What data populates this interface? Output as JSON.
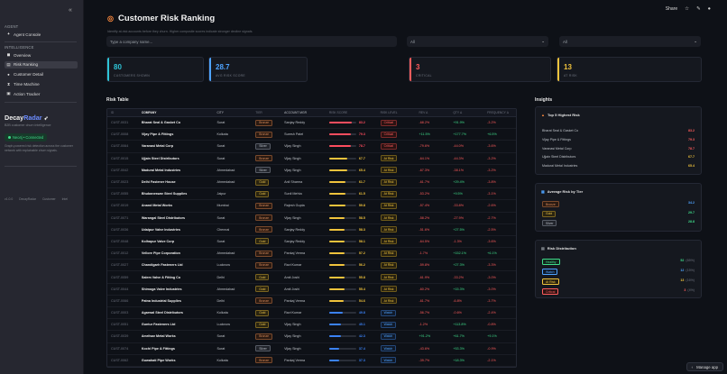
{
  "sidebar": {
    "collapse_glyph": "«",
    "agent_section": "AGENT",
    "agent_console": "Agent Console",
    "intel_section": "INTELLIGENCE",
    "items": [
      {
        "label": "Overview",
        "icon": "overview-icon",
        "glyph": "◼",
        "active": false
      },
      {
        "label": "Risk Ranking",
        "icon": "risk-ranking-icon",
        "glyph": "▤",
        "active": true
      },
      {
        "label": "Customer Detail",
        "icon": "user-icon",
        "glyph": "●",
        "active": false
      },
      {
        "label": "Time Machine",
        "icon": "hourglass-icon",
        "glyph": "⧗",
        "active": false
      },
      {
        "label": "Action Tracker",
        "icon": "clipboard-icon",
        "glyph": "▣",
        "active": false
      }
    ],
    "brand_prefix": "Decay",
    "brand_accent": "Radar",
    "brand_glyph": "➶",
    "brand_sub": "B2B customer churn intelligence",
    "connection": "Neo4j • Connected",
    "note": "Graph-powered risk detection across the customer network with explainable churn signals.",
    "footer": "v1.0.0   DecayRadar   Customer Intel"
  },
  "topbar": {
    "share": "Share"
  },
  "page": {
    "title": "Customer Risk Ranking",
    "title_glyph": "◎",
    "subtitle": "Identify at-risk accounts before they churn. Higher composite scores indicate stronger decline signals."
  },
  "filters": {
    "search_placeholder": "Type a company name...",
    "tier_value": "All",
    "level_value": "All"
  },
  "kpis": [
    {
      "value": "80",
      "label": "CUSTOMERS SHOWN",
      "color": "#2ec4d6"
    },
    {
      "value": "28.7",
      "label": "AVG RISK SCORE",
      "color": "#4ea3ff"
    },
    {
      "value": "3",
      "label": "CRITICAL",
      "color": "#ff5c5c"
    },
    {
      "value": "13",
      "label": "AT RISK",
      "color": "#f0c33c"
    }
  ],
  "risk_table": {
    "title": "Risk Table",
    "headers": [
      "ID",
      "COMPANY",
      "CITY",
      "TIER",
      "ACCOUNT MGR",
      "RISK SCORE",
      "RISK LEVEL",
      "REV Δ",
      "QTY Δ",
      "FREQUENCY Δ"
    ],
    "rows": [
      {
        "id": "CUST-0031",
        "company": "Bharat Seal & Gasket Co",
        "city": "Surat",
        "tier": "Bronze",
        "mgr": "Sanjay Reddy",
        "score": 83.2,
        "level": "Critical",
        "rev": "-68.2%",
        "qty": "+91.9%",
        "freq": "-3.2%"
      },
      {
        "id": "CUST-0008",
        "company": "Vijay Pipe & Fittings",
        "city": "Kolkata",
        "tier": "Bronze",
        "mgr": "Suresh Patel",
        "score": 79.3,
        "level": "Critical",
        "rev": "+11.5%",
        "qty": "+177.7%",
        "freq": "+6.5%"
      },
      {
        "id": "CUST-0064",
        "company": "Varanasi Metal Corp",
        "city": "Surat",
        "tier": "Silver",
        "mgr": "Vijay Singh",
        "score": 78.7,
        "level": "Critical",
        "rev": "-79.6%",
        "qty": "-44.0%",
        "freq": "-3.6%"
      },
      {
        "id": "CUST-0015",
        "company": "Ujjain Steel Distributors",
        "city": "Surat",
        "tier": "Bronze",
        "mgr": "Vijay Singh",
        "score": 67.7,
        "level": "At Risk",
        "rev": "-64.1%",
        "qty": "-44.3%",
        "freq": "-3.2%"
      },
      {
        "id": "CUST-0042",
        "company": "Madurai Metal Industries",
        "city": "Ahmedabad",
        "tier": "Silver",
        "mgr": "Vijay Singh",
        "score": 65.4,
        "level": "At Risk",
        "rev": "-67.3%",
        "qty": "-38.1%",
        "freq": "-3.2%"
      },
      {
        "id": "CUST-0023",
        "company": "Delhi Fastener House",
        "city": "Ahmedabad",
        "tier": "Gold",
        "mgr": "Anil Sharma",
        "score": 61.7,
        "level": "At Risk",
        "rev": "-61.7%",
        "qty": "+29.4%",
        "freq": "-3.8%"
      },
      {
        "id": "CUST-0055",
        "company": "Bhubaneswar Steel Supplies",
        "city": "Jaipur",
        "tier": "Gold",
        "mgr": "Sunil Mehta",
        "score": 61.5,
        "level": "At Risk",
        "rev": "-53.2%",
        "qty": "+9.5%",
        "freq": "-3.1%"
      },
      {
        "id": "CUST-0019",
        "company": "Anand Metal Works",
        "city": "Mumbai",
        "tier": "Bronze",
        "mgr": "Rajesh Gupta",
        "score": 59.8,
        "level": "At Risk",
        "rev": "-57.4%",
        "qty": "-33.8%",
        "freq": "-2.6%"
      },
      {
        "id": "CUST-0071",
        "company": "Warangal Steel Distributors",
        "city": "Surat",
        "tier": "Bronze",
        "mgr": "Vijay Singh",
        "score": 58.5,
        "level": "At Risk",
        "rev": "-58.2%",
        "qty": "-27.9%",
        "freq": "-2.7%"
      },
      {
        "id": "CUST-0036",
        "company": "Udaipur Valve Industries",
        "city": "Chennai",
        "tier": "Bronze",
        "mgr": "Sanjay Reddy",
        "score": 58.3,
        "level": "At Risk",
        "rev": "-51.6%",
        "qty": "+27.5%",
        "freq": "-2.5%"
      },
      {
        "id": "CUST-0048",
        "company": "Kolhapur Valve Corp",
        "city": "Surat",
        "tier": "Gold",
        "mgr": "Sanjay Reddy",
        "score": 58.1,
        "level": "At Risk",
        "rev": "-64.5%",
        "qty": "-1.3%",
        "freq": "-3.6%"
      },
      {
        "id": "CUST-0012",
        "company": "Vellore Pipe Corporation",
        "city": "Ahmedabad",
        "tier": "Bronze",
        "mgr": "Pankaj Verma",
        "score": 57.2,
        "level": "At Risk",
        "rev": "-1.7%",
        "qty": "+152.1%",
        "freq": "+6.1%"
      },
      {
        "id": "CUST-0027",
        "company": "Chandigarh Fasteners Ltd",
        "city": "Lucknow",
        "tier": "Bronze",
        "mgr": "Ravi Kumar",
        "score": 56.2,
        "level": "At Risk",
        "rev": "-59.8%",
        "qty": "+27.3%",
        "freq": "-3.3%"
      },
      {
        "id": "CUST-0059",
        "company": "Salem Valve & Fitting Co",
        "city": "Delhi",
        "tier": "Gold",
        "mgr": "Amit Joshi",
        "score": 55.8,
        "level": "At Risk",
        "rev": "-61.9%",
        "qty": "-33.2%",
        "freq": "-3.0%"
      },
      {
        "id": "CUST-0044",
        "company": "Shimoga Valve Industries",
        "city": "Ahmedabad",
        "tier": "Gold",
        "mgr": "Amit Joshi",
        "score": 55.4,
        "level": "At Risk",
        "rev": "-60.2%",
        "qty": "+15.3%",
        "freq": "-3.0%"
      },
      {
        "id": "CUST-0066",
        "company": "Patna Industrial Supplies",
        "city": "Delhi",
        "tier": "Bronze",
        "mgr": "Pankaj Verma",
        "score": 54.6,
        "level": "At Risk",
        "rev": "-61.7%",
        "qty": "-6.8%",
        "freq": "-3.7%"
      },
      {
        "id": "CUST-0003",
        "company": "Agarwal Steel Distributors",
        "city": "Kolkata",
        "tier": "Gold",
        "mgr": "Ravi Kumar",
        "score": 49.8,
        "level": "Watch",
        "rev": "-56.7%",
        "qty": "-0.6%",
        "freq": "-2.4%"
      },
      {
        "id": "CUST-0051",
        "company": "Guntur Fasteners Ltd",
        "city": "Lucknow",
        "tier": "Gold",
        "mgr": "Vijay Singh",
        "score": 45.1,
        "level": "Watch",
        "rev": "-1.2%",
        "qty": "+113.8%",
        "freq": "-0.8%"
      },
      {
        "id": "CUST-0039",
        "company": "Amritsar Metal Works",
        "city": "Surat",
        "tier": "Bronze",
        "mgr": "Vijay Singh",
        "score": 42.3,
        "level": "Watch",
        "rev": "+91.2%",
        "qty": "+61.7%",
        "freq": "+9.1%"
      },
      {
        "id": "CUST-0074",
        "company": "Kochi Pipe & Fittings",
        "city": "Surat",
        "tier": "Silver",
        "mgr": "Vijay Singh",
        "score": 37.4,
        "level": "Watch",
        "rev": "-43.6%",
        "qty": "+53.3%",
        "freq": "-0.9%"
      },
      {
        "id": "CUST-0062",
        "company": "Guwahati Pipe Works",
        "city": "Kolkata",
        "tier": "Bronze",
        "mgr": "Pankaj Verma",
        "score": 37.3,
        "level": "Watch",
        "rev": "-39.7%",
        "qty": "+18.3%",
        "freq": "-2.1%"
      }
    ]
  },
  "insights": {
    "title": "Insights",
    "top5": {
      "title": "Top 5 Highest Risk",
      "glyph": "▲",
      "items": [
        {
          "name": "Bharat Seal & Gasket Co",
          "value": "83.2",
          "color": "#ff5c5c"
        },
        {
          "name": "Vijay Pipe & Fittings",
          "value": "79.3",
          "color": "#ff5c5c"
        },
        {
          "name": "Varanasi Metal Corp",
          "value": "78.7",
          "color": "#ff5c5c"
        },
        {
          "name": "Ujjain Steel Distributors",
          "value": "67.7",
          "color": "#f0c33c"
        },
        {
          "name": "Madurai Metal Industries",
          "value": "65.4",
          "color": "#f0c33c"
        }
      ]
    },
    "by_tier": {
      "title": "Average Risk by Tier",
      "glyph": "▦",
      "items": [
        {
          "tier": "Bronze",
          "value": "34.2",
          "color": "#4ea3ff"
        },
        {
          "tier": "Gold",
          "value": "29.7",
          "color": "#3fdc8a"
        },
        {
          "tier": "Silver",
          "value": "28.8",
          "color": "#3fdc8a"
        }
      ]
    },
    "distribution": {
      "title": "Risk Distribution",
      "glyph": "▤",
      "items": [
        {
          "level": "Healthy",
          "count": "52",
          "pct": "(65%)",
          "tag_color": "#3fdc8a",
          "tag_bg": "#12261d",
          "count_color": "#3fdc8a"
        },
        {
          "level": "Watch",
          "count": "12",
          "pct": "(15%)",
          "tag_color": "#4ea3ff",
          "tag_bg": "#101a2a",
          "count_color": "#4ea3ff"
        },
        {
          "level": "At Risk",
          "count": "13",
          "pct": "(16%)",
          "tag_color": "#f0c33c",
          "tag_bg": "#262010",
          "count_color": "#f0c33c"
        },
        {
          "level": "Critical",
          "count": "3",
          "pct": "(4%)",
          "tag_color": "#ff5c5c",
          "tag_bg": "#2a1212",
          "count_color": "#ff5c5c"
        }
      ]
    }
  },
  "manage_app": "Manage app"
}
